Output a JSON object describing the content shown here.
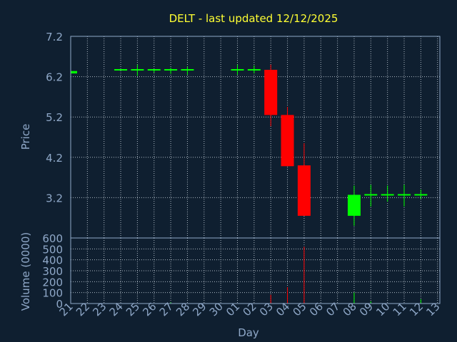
{
  "colors": {
    "background": "#0f1f30",
    "axis_text": "#8fa8c8",
    "title": "#ffff33",
    "grid": "#c8d2dc",
    "up": "#00ff00",
    "down": "#ff0000"
  },
  "chart_data": {
    "type": "candlestick",
    "title": "DELT - last updated 12/12/2025",
    "xlabel": "Day",
    "grid": true,
    "x_ticks": [
      "21",
      "22",
      "23",
      "24",
      "25",
      "26",
      "27",
      "28",
      "29",
      "30",
      "01",
      "02",
      "03",
      "04",
      "05",
      "06",
      "07",
      "08",
      "09",
      "10",
      "11",
      "12",
      "13"
    ],
    "price_panel": {
      "ylabel": "Price",
      "ylim": [
        2.2,
        7.2
      ],
      "y_ticks": [
        "7.2",
        "6.2",
        "5.2",
        "4.2",
        "3.2"
      ],
      "candles": [
        {
          "day": "21",
          "open": 6.28,
          "close": 6.34,
          "high": 6.34,
          "low": 6.28
        },
        {
          "day": "24",
          "open": 6.37,
          "close": 6.37,
          "high": 6.37,
          "low": 6.37
        },
        {
          "day": "25",
          "open": 6.37,
          "close": 6.37,
          "high": 6.5,
          "low": 6.22
        },
        {
          "day": "26",
          "open": 6.37,
          "close": 6.37,
          "high": 6.37,
          "low": 6.3
        },
        {
          "day": "27",
          "open": 6.37,
          "close": 6.37,
          "high": 6.42,
          "low": 6.27
        },
        {
          "day": "28",
          "open": 6.37,
          "close": 6.37,
          "high": 6.45,
          "low": 6.25
        },
        {
          "day": "01",
          "open": 6.37,
          "close": 6.37,
          "high": 6.5,
          "low": 6.25
        },
        {
          "day": "02",
          "open": 6.37,
          "close": 6.37,
          "high": 6.48,
          "low": 6.28
        },
        {
          "day": "03",
          "open": 6.37,
          "close": 5.25,
          "high": 6.5,
          "low": 4.97
        },
        {
          "day": "04",
          "open": 5.25,
          "close": 3.98,
          "high": 5.45,
          "low": 3.98
        },
        {
          "day": "05",
          "open": 4.0,
          "close": 2.75,
          "high": 4.55,
          "low": 2.75
        },
        {
          "day": "08",
          "open": 2.75,
          "close": 3.27,
          "high": 3.5,
          "low": 2.5
        },
        {
          "day": "09",
          "open": 3.27,
          "close": 3.27,
          "high": 3.52,
          "low": 2.98
        },
        {
          "day": "10",
          "open": 3.27,
          "close": 3.27,
          "high": 3.5,
          "low": 3.1
        },
        {
          "day": "11",
          "open": 3.27,
          "close": 3.27,
          "high": 3.52,
          "low": 2.98
        },
        {
          "day": "12",
          "open": 3.27,
          "close": 3.27,
          "high": 3.4,
          "low": 3.17
        }
      ]
    },
    "volume_panel": {
      "ylabel": "Volume (0000)",
      "ylim": [
        0,
        600
      ],
      "y_ticks": [
        "600",
        "500",
        "400",
        "300",
        "200",
        "100",
        "0"
      ],
      "bars": [
        {
          "day": "27",
          "value": 10,
          "dir": "up"
        },
        {
          "day": "03",
          "value": 80,
          "dir": "down"
        },
        {
          "day": "04",
          "value": 150,
          "dir": "down"
        },
        {
          "day": "05",
          "value": 520,
          "dir": "down"
        },
        {
          "day": "08",
          "value": 100,
          "dir": "up"
        },
        {
          "day": "09",
          "value": 20,
          "dir": "up"
        },
        {
          "day": "12",
          "value": 40,
          "dir": "up"
        }
      ]
    }
  }
}
